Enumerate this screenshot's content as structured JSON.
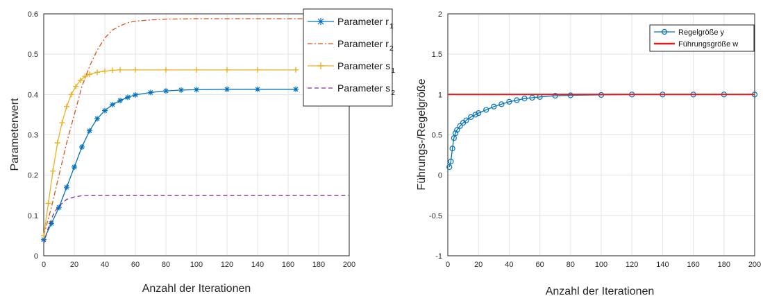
{
  "chart_data": [
    {
      "type": "line",
      "xlabel": "Anzahl der Iterationen",
      "ylabel": "Parameterwert",
      "xlim": [
        0,
        200
      ],
      "ylim": [
        0,
        0.6
      ],
      "xticks": [
        "0",
        "20",
        "40",
        "60",
        "80",
        "100",
        "120",
        "140",
        "160",
        "180",
        "200"
      ],
      "yticks": [
        "0",
        "0.1",
        "0.2",
        "0.3",
        "0.4",
        "0.5",
        "0.6"
      ],
      "grid": true,
      "legend_position": "top-right",
      "series": [
        {
          "name": "Parameter r",
          "sub": "1",
          "color": "#0072BD",
          "style": "solid",
          "marker": "asterisk",
          "x": [
            0,
            5,
            10,
            15,
            20,
            25,
            30,
            35,
            40,
            45,
            50,
            55,
            60,
            70,
            80,
            90,
            100,
            120,
            140,
            165
          ],
          "y": [
            0.04,
            0.08,
            0.12,
            0.17,
            0.22,
            0.27,
            0.31,
            0.34,
            0.36,
            0.375,
            0.385,
            0.393,
            0.399,
            0.405,
            0.409,
            0.411,
            0.412,
            0.413,
            0.413,
            0.413
          ]
        },
        {
          "name": "Parameter r",
          "sub": "2",
          "color": "#D95319",
          "style": "dashdot",
          "marker": "none",
          "x": [
            0,
            5,
            10,
            15,
            20,
            25,
            30,
            35,
            40,
            45,
            50,
            55,
            60,
            70,
            80,
            100,
            120,
            140,
            160,
            200
          ],
          "y": [
            0.05,
            0.12,
            0.2,
            0.28,
            0.35,
            0.42,
            0.47,
            0.51,
            0.54,
            0.56,
            0.57,
            0.578,
            0.582,
            0.585,
            0.587,
            0.588,
            0.588,
            0.588,
            0.588,
            0.588
          ]
        },
        {
          "name": "Parameter s",
          "sub": "1",
          "color": "#EDB120",
          "style": "solid",
          "marker": "plus",
          "x": [
            0,
            3,
            6,
            9,
            12,
            15,
            18,
            21,
            24,
            27,
            30,
            35,
            40,
            45,
            50,
            60,
            80,
            100,
            120,
            140,
            165
          ],
          "y": [
            0.05,
            0.13,
            0.21,
            0.28,
            0.33,
            0.37,
            0.4,
            0.42,
            0.435,
            0.445,
            0.45,
            0.455,
            0.458,
            0.46,
            0.461,
            0.461,
            0.461,
            0.461,
            0.461,
            0.461,
            0.461
          ]
        },
        {
          "name": "Parameter s",
          "sub": "2",
          "color": "#7E2F8E",
          "style": "dashed",
          "marker": "none",
          "x": [
            0,
            3,
            6,
            9,
            12,
            15,
            20,
            25,
            30,
            40,
            60,
            100,
            150,
            200
          ],
          "y": [
            0.03,
            0.07,
            0.1,
            0.12,
            0.13,
            0.14,
            0.146,
            0.149,
            0.15,
            0.15,
            0.15,
            0.15,
            0.15,
            0.15
          ]
        }
      ]
    },
    {
      "type": "line",
      "xlabel": "Anzahl der Iterationen",
      "ylabel": "Führungs-/Regelgröße",
      "xlim": [
        0,
        200
      ],
      "ylim": [
        -1,
        2
      ],
      "xticks": [
        "0",
        "20",
        "40",
        "60",
        "80",
        "100",
        "120",
        "140",
        "160",
        "180",
        "200"
      ],
      "yticks": [
        "-1",
        "-0.5",
        "0",
        "0.5",
        "1",
        "1.5",
        "2"
      ],
      "grid": true,
      "legend_position": "top-right",
      "series": [
        {
          "name": "Regelgröße y",
          "color": "#0072BD",
          "style": "solid",
          "marker": "circle",
          "x": [
            1,
            2,
            3,
            4,
            5,
            6,
            8,
            10,
            12,
            15,
            18,
            20,
            25,
            30,
            35,
            40,
            45,
            50,
            55,
            60,
            70,
            80,
            100,
            120,
            140,
            160,
            180,
            200
          ],
          "y": [
            0.1,
            0.17,
            0.33,
            0.46,
            0.52,
            0.56,
            0.61,
            0.65,
            0.68,
            0.72,
            0.75,
            0.77,
            0.81,
            0.85,
            0.88,
            0.91,
            0.93,
            0.95,
            0.96,
            0.97,
            0.985,
            0.99,
            0.995,
            1.0,
            1.0,
            1.0,
            1.0,
            1.0
          ]
        },
        {
          "name": "Führungsgröße w",
          "color": "#E31A1C",
          "style": "solid",
          "marker": "none",
          "x": [
            0,
            200
          ],
          "y": [
            1,
            1
          ]
        }
      ]
    }
  ]
}
